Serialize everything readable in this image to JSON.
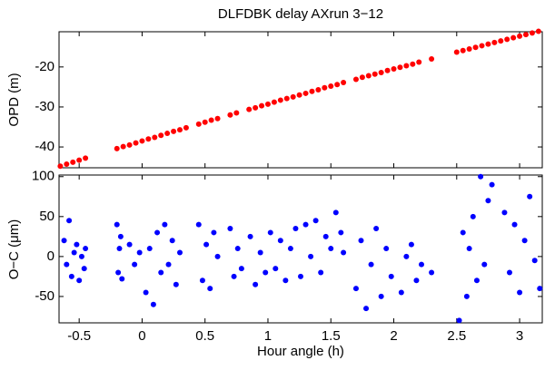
{
  "chart_data": [
    {
      "type": "scatter",
      "title": "DLFDBK delay AXrun 3−12",
      "ylabel": "OPD (m)",
      "color": "#ff0000",
      "xlim": [
        -0.66,
        3.18
      ],
      "ylim": [
        -45.2,
        -11.2
      ],
      "yticks": [
        -40,
        -30,
        -20
      ],
      "x": [
        -0.65,
        -0.6,
        -0.55,
        -0.5,
        -0.45,
        -0.2,
        -0.15,
        -0.1,
        -0.05,
        0,
        0.05,
        0.1,
        0.15,
        0.2,
        0.25,
        0.3,
        0.35,
        0.45,
        0.5,
        0.55,
        0.6,
        0.7,
        0.75,
        0.85,
        0.9,
        0.95,
        1,
        1.05,
        1.1,
        1.15,
        1.2,
        1.25,
        1.3,
        1.35,
        1.4,
        1.45,
        1.5,
        1.55,
        1.6,
        1.7,
        1.75,
        1.8,
        1.85,
        1.9,
        1.95,
        2,
        2.05,
        2.1,
        2.15,
        2.2,
        2.3,
        2.5,
        2.55,
        2.6,
        2.65,
        2.7,
        2.75,
        2.8,
        2.85,
        2.9,
        2.95,
        3,
        3.05,
        3.1,
        3.15
      ],
      "values": [
        -44.8,
        -44.3,
        -43.8,
        -43.3,
        -42.8,
        -40.4,
        -39.9,
        -39.5,
        -39.0,
        -38.5,
        -38.0,
        -37.6,
        -37.1,
        -36.6,
        -36.1,
        -35.7,
        -35.2,
        -34.3,
        -33.8,
        -33.3,
        -32.9,
        -32.0,
        -31.5,
        -30.6,
        -30.2,
        -29.7,
        -29.3,
        -28.8,
        -28.3,
        -27.9,
        -27.5,
        -27.0,
        -26.6,
        -26.1,
        -25.7,
        -25.2,
        -24.8,
        -24.4,
        -23.9,
        -23.1,
        -22.6,
        -22.2,
        -21.8,
        -21.4,
        -20.9,
        -20.5,
        -20.1,
        -19.7,
        -19.3,
        -18.8,
        -18.0,
        -16.3,
        -15.9,
        -15.5,
        -15.1,
        -14.7,
        -14.3,
        -13.9,
        -13.5,
        -13.1,
        -12.7,
        -12.3,
        -11.9,
        -11.5,
        -11.1
      ]
    },
    {
      "type": "scatter",
      "xlabel": "Hour angle (h)",
      "ylabel": "O−C (μm)",
      "color": "#0000ff",
      "xlim": [
        -0.66,
        3.18
      ],
      "ylim": [
        -83,
        102
      ],
      "xticks": [
        -0.5,
        0,
        0.5,
        1,
        1.5,
        2,
        2.5,
        3
      ],
      "yticks": [
        -50,
        0,
        50,
        100
      ],
      "x": [
        -0.62,
        -0.6,
        -0.58,
        -0.56,
        -0.54,
        -0.52,
        -0.5,
        -0.48,
        -0.46,
        -0.45,
        -0.2,
        -0.19,
        -0.18,
        -0.17,
        -0.16,
        -0.1,
        -0.06,
        -0.02,
        0.03,
        0.06,
        0.09,
        0.12,
        0.15,
        0.18,
        0.21,
        0.24,
        0.27,
        0.3,
        0.45,
        0.48,
        0.51,
        0.54,
        0.57,
        0.6,
        0.7,
        0.73,
        0.76,
        0.79,
        0.86,
        0.9,
        0.94,
        0.98,
        1.02,
        1.06,
        1.1,
        1.14,
        1.18,
        1.22,
        1.26,
        1.3,
        1.34,
        1.38,
        1.42,
        1.46,
        1.5,
        1.54,
        1.58,
        1.6,
        1.7,
        1.74,
        1.78,
        1.82,
        1.86,
        1.9,
        1.94,
        1.98,
        2.06,
        2.1,
        2.14,
        2.18,
        2.22,
        2.3,
        2.52,
        2.55,
        2.58,
        2.6,
        2.63,
        2.66,
        2.69,
        2.72,
        2.75,
        2.78,
        2.88,
        2.92,
        2.96,
        3.0,
        3.04,
        3.08,
        3.12,
        3.16
      ],
      "values": [
        20,
        -10,
        45,
        -25,
        5,
        15,
        -30,
        0,
        -15,
        10,
        40,
        -20,
        10,
        25,
        -28,
        15,
        -10,
        5,
        -45,
        10,
        -60,
        30,
        -20,
        40,
        -10,
        20,
        -35,
        5,
        40,
        -30,
        15,
        -40,
        30,
        0,
        35,
        -25,
        10,
        -15,
        25,
        -35,
        5,
        -20,
        30,
        -15,
        20,
        -30,
        10,
        35,
        -25,
        40,
        0,
        45,
        -20,
        25,
        10,
        55,
        30,
        5,
        -40,
        20,
        -65,
        -10,
        35,
        -50,
        10,
        -25,
        -45,
        0,
        15,
        -30,
        -10,
        -20,
        -80,
        30,
        -50,
        10,
        50,
        -30,
        100,
        -10,
        70,
        90,
        55,
        -20,
        40,
        -45,
        20,
        75,
        -5,
        -40
      ]
    }
  ]
}
